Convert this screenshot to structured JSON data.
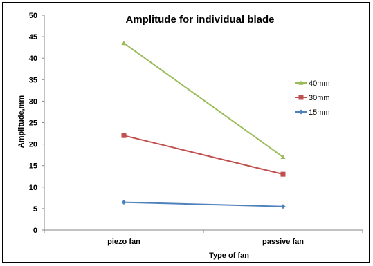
{
  "chart_data": {
    "type": "line",
    "title": "Amplitude for individual blade",
    "xlabel": "Type of fan",
    "ylabel": "Amplitude,mm",
    "categories": [
      "piezo fan",
      "passive fan"
    ],
    "ylim": [
      0,
      50
    ],
    "yticks": [
      0,
      5,
      10,
      15,
      20,
      25,
      30,
      35,
      40,
      45,
      50
    ],
    "grid": false,
    "legend_position": "right",
    "series": [
      {
        "name": "40mm",
        "values": [
          43.5,
          17
        ],
        "color": "#9bbb59",
        "marker": "triangle"
      },
      {
        "name": "30mm",
        "values": [
          22,
          13
        ],
        "color": "#c0504d",
        "marker": "square"
      },
      {
        "name": "15mm",
        "values": [
          6.5,
          5.5
        ],
        "color": "#4f81bd",
        "marker": "diamond"
      }
    ]
  }
}
